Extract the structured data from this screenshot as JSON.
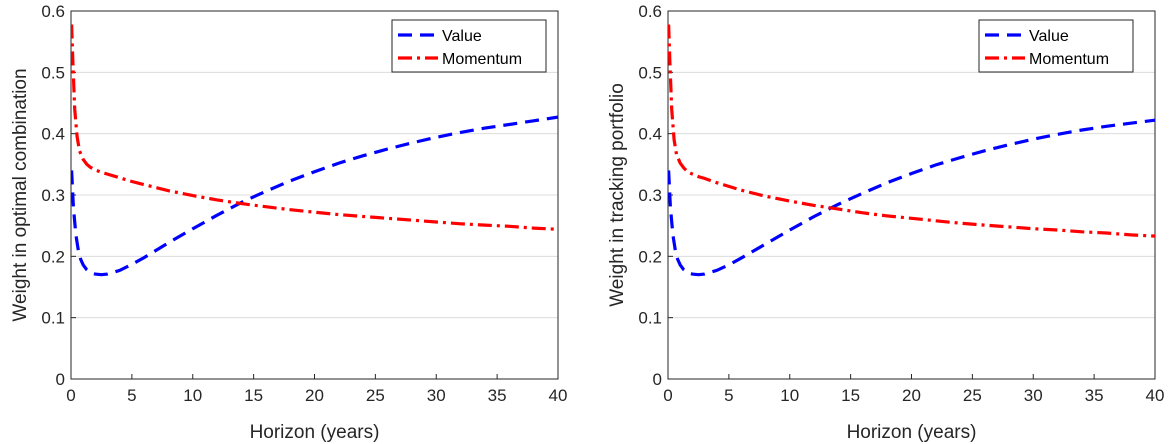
{
  "chart_data": [
    {
      "type": "line",
      "xlabel": "Horizon (years)",
      "ylabel": "Weight in optimal combination",
      "xlim": [
        0,
        40
      ],
      "ylim": [
        0,
        0.6
      ],
      "xticks": [
        "0",
        "5",
        "10",
        "15",
        "20",
        "25",
        "30",
        "35",
        "40"
      ],
      "yticks": [
        "0",
        "0.1",
        "0.2",
        "0.3",
        "0.4",
        "0.5",
        "0.6"
      ],
      "grid": "horizontal",
      "legend": "top-right",
      "series": [
        {
          "name": "Value",
          "color": "#0000ff",
          "style": "dashed",
          "x": [
            0.05,
            0.2,
            0.4,
            0.6,
            0.8,
            1,
            1.3,
            1.6,
            2,
            2.5,
            3,
            4,
            5,
            6,
            8,
            10,
            12,
            14,
            16,
            18,
            20,
            22,
            24,
            26,
            28,
            30,
            32,
            34,
            36,
            38,
            40
          ],
          "y": [
            0.34,
            0.28,
            0.235,
            0.21,
            0.195,
            0.186,
            0.178,
            0.173,
            0.171,
            0.17,
            0.171,
            0.177,
            0.187,
            0.198,
            0.222,
            0.245,
            0.267,
            0.288,
            0.306,
            0.323,
            0.338,
            0.352,
            0.364,
            0.375,
            0.385,
            0.394,
            0.402,
            0.409,
            0.415,
            0.421,
            0.427
          ]
        },
        {
          "name": "Momentum",
          "color": "#ff0000",
          "style": "dashdot",
          "x": [
            0.05,
            0.15,
            0.3,
            0.5,
            0.7,
            1,
            1.3,
            1.6,
            2,
            2.5,
            3,
            4,
            5,
            6,
            8,
            10,
            12,
            14,
            16,
            18,
            20,
            22,
            24,
            26,
            28,
            30,
            32,
            34,
            36,
            38,
            40
          ],
          "y": [
            0.578,
            0.52,
            0.44,
            0.395,
            0.372,
            0.358,
            0.35,
            0.345,
            0.341,
            0.337,
            0.334,
            0.328,
            0.322,
            0.317,
            0.307,
            0.299,
            0.292,
            0.286,
            0.281,
            0.276,
            0.272,
            0.268,
            0.265,
            0.262,
            0.259,
            0.256,
            0.253,
            0.251,
            0.249,
            0.246,
            0.244
          ]
        }
      ]
    },
    {
      "type": "line",
      "xlabel": "Horizon (years)",
      "ylabel": "Weight in tracking portfolio",
      "xlim": [
        0,
        40
      ],
      "ylim": [
        0,
        0.6
      ],
      "xticks": [
        "0",
        "5",
        "10",
        "15",
        "20",
        "25",
        "30",
        "35",
        "40"
      ],
      "yticks": [
        "0",
        "0.1",
        "0.2",
        "0.3",
        "0.4",
        "0.5",
        "0.6"
      ],
      "grid": "horizontal",
      "legend": "top-right",
      "series": [
        {
          "name": "Value",
          "color": "#0000ff",
          "style": "dashed",
          "x": [
            0.05,
            0.2,
            0.4,
            0.6,
            0.8,
            1,
            1.3,
            1.6,
            2,
            2.5,
            3,
            4,
            5,
            6,
            8,
            10,
            12,
            14,
            16,
            18,
            20,
            22,
            24,
            26,
            28,
            30,
            32,
            34,
            36,
            38,
            40
          ],
          "y": [
            0.34,
            0.28,
            0.235,
            0.21,
            0.195,
            0.186,
            0.178,
            0.173,
            0.171,
            0.17,
            0.171,
            0.177,
            0.186,
            0.197,
            0.22,
            0.243,
            0.265,
            0.285,
            0.303,
            0.32,
            0.335,
            0.349,
            0.361,
            0.372,
            0.382,
            0.391,
            0.399,
            0.406,
            0.412,
            0.417,
            0.422
          ]
        },
        {
          "name": "Momentum",
          "color": "#ff0000",
          "style": "dashdot",
          "x": [
            0.05,
            0.15,
            0.3,
            0.5,
            0.7,
            1,
            1.3,
            1.6,
            2,
            2.5,
            3,
            4,
            5,
            6,
            8,
            10,
            12,
            14,
            16,
            18,
            20,
            22,
            24,
            26,
            28,
            30,
            32,
            34,
            36,
            38,
            40
          ],
          "y": [
            0.578,
            0.52,
            0.44,
            0.39,
            0.366,
            0.352,
            0.344,
            0.338,
            0.334,
            0.33,
            0.327,
            0.32,
            0.314,
            0.308,
            0.298,
            0.29,
            0.283,
            0.277,
            0.271,
            0.266,
            0.262,
            0.258,
            0.254,
            0.251,
            0.248,
            0.245,
            0.243,
            0.24,
            0.238,
            0.235,
            0.233
          ]
        }
      ]
    }
  ]
}
